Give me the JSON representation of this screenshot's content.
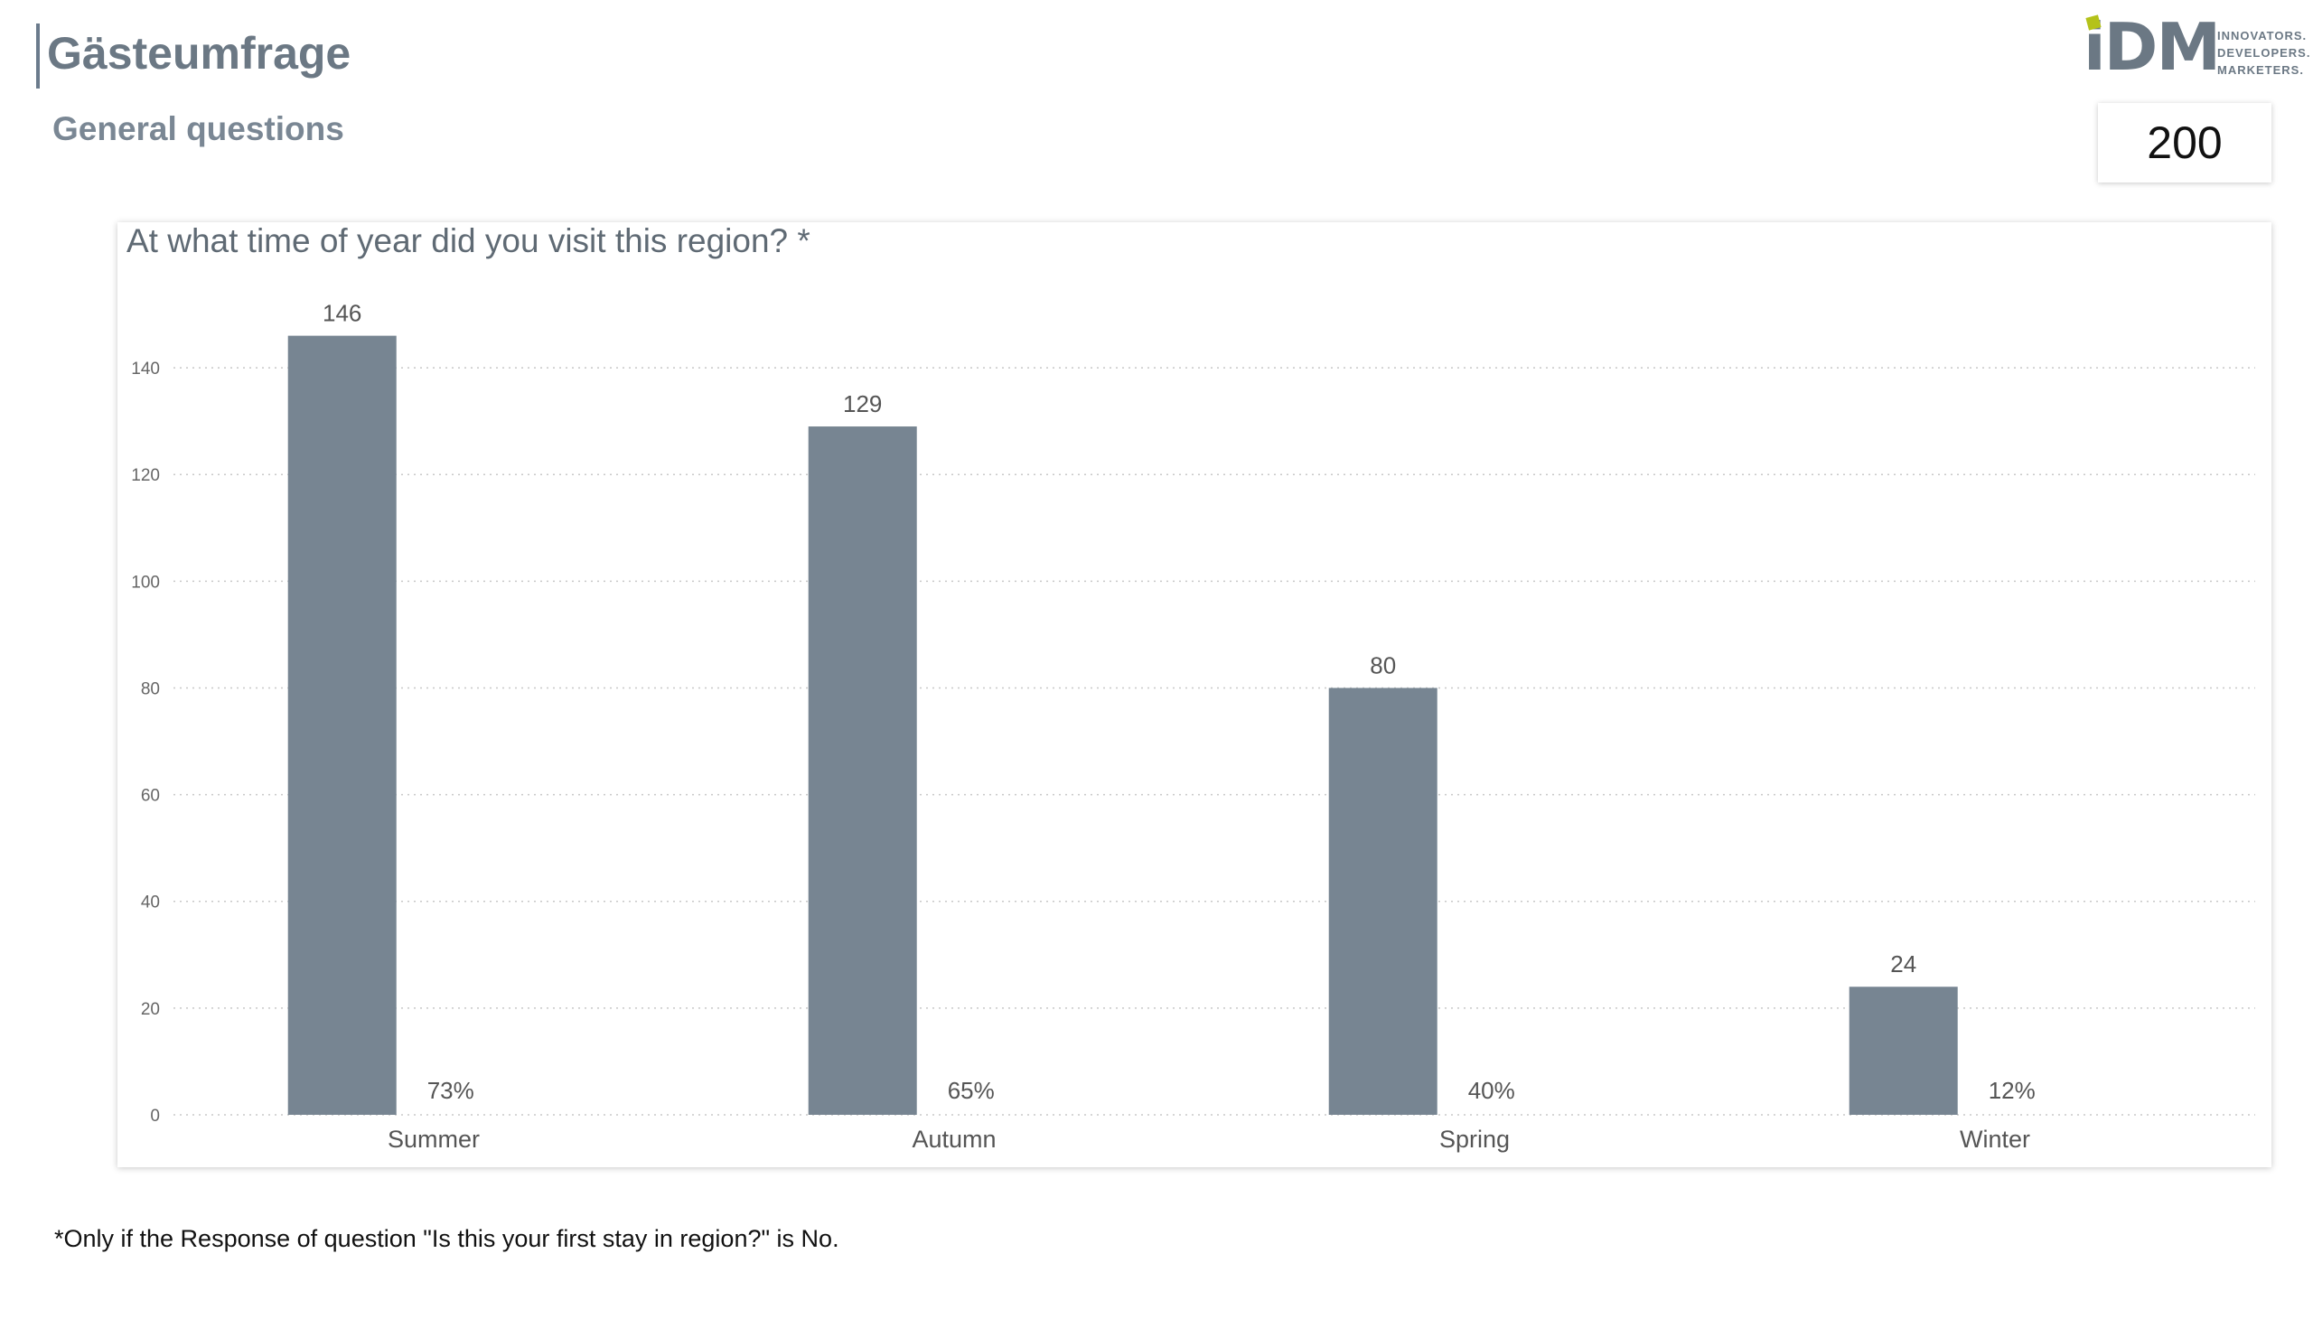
{
  "header": {
    "title": "Gästeumfrage",
    "subtitle": "General questions"
  },
  "logo": {
    "mark": "iDM",
    "tagline": [
      "INNOVATORS.",
      "DEVELOPERS.",
      "MARKETERS."
    ],
    "accent_color": "#b4c21a"
  },
  "respondents_card": {
    "value": "200"
  },
  "chart_data": {
    "type": "bar",
    "title": "At what time of year did you visit this region? *",
    "categories": [
      "Summer",
      "Autumn",
      "Spring",
      "Winter"
    ],
    "values": [
      146,
      129,
      80,
      24
    ],
    "percent_labels": [
      "73%",
      "65%",
      "40%",
      "12%"
    ],
    "ylim": [
      0,
      150
    ],
    "yticks": [
      0,
      20,
      40,
      60,
      80,
      100,
      120,
      140
    ],
    "xlabel": "",
    "ylabel": "",
    "grid": true,
    "bar_color": "#778592"
  },
  "footnote": "*Only if the Response of question \"Is this your first stay in region?\" is No."
}
